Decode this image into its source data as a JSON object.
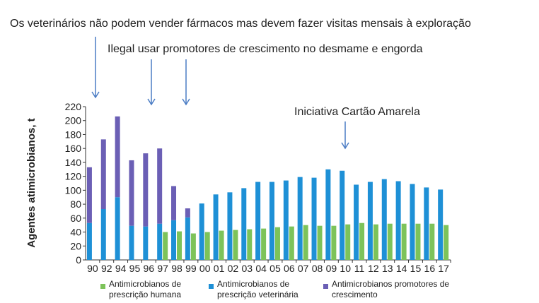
{
  "chart_data": {
    "type": "bar",
    "stacked_partial": true,
    "ylabel": "Agentes atimicrobianos, t",
    "ylim": [
      0,
      220
    ],
    "yticks": [
      0,
      20,
      40,
      60,
      80,
      100,
      120,
      140,
      160,
      180,
      200,
      220
    ],
    "categories": [
      "90",
      "92",
      "94",
      "95",
      "96",
      "97",
      "98",
      "99",
      "00",
      "01",
      "02",
      "03",
      "04",
      "05",
      "06",
      "07",
      "08",
      "09",
      "10",
      "11",
      "12",
      "13",
      "14",
      "15",
      "16",
      "17"
    ],
    "series": [
      {
        "name": "Antimicrobianos de prescrição humana",
        "color": "#7dc35a",
        "values": [
          null,
          null,
          null,
          null,
          null,
          40,
          41,
          38,
          40,
          42,
          43,
          44,
          45,
          47,
          48,
          50,
          49,
          49,
          51,
          53,
          51,
          52,
          52,
          52,
          52,
          50
        ]
      },
      {
        "name": "Antimicrobianos de prescrição veterinária",
        "color": "#1e90d6",
        "values": [
          53,
          73,
          90,
          49,
          48,
          52,
          57,
          61,
          81,
          94,
          97,
          103,
          112,
          112,
          114,
          119,
          118,
          130,
          128,
          108,
          112,
          116,
          113,
          109,
          104,
          101
        ]
      },
      {
        "name": "Antimicrobianos promotores de crescimento",
        "color": "#6b5fb5",
        "stacked_on": "Antimicrobianos de prescrição veterinária",
        "values": [
          80,
          100,
          116,
          94,
          105,
          108,
          49,
          13,
          null,
          null,
          null,
          null,
          null,
          null,
          null,
          null,
          null,
          null,
          null,
          null,
          null,
          null,
          null,
          null,
          null,
          null
        ]
      }
    ],
    "annotations": [
      {
        "text": "Os veterinários não podem vender fármacos mas devem fazer visitas mensais à exploração",
        "arrow_at": "90"
      },
      {
        "text": "Ilegal usar promotores de crescimento no desmame e engorda",
        "arrow_at": [
          "96",
          "99"
        ]
      },
      {
        "text": "Iniciativa Cartão Amarela",
        "arrow_at": "10"
      }
    ],
    "legend_position": "bottom",
    "grid": false
  }
}
